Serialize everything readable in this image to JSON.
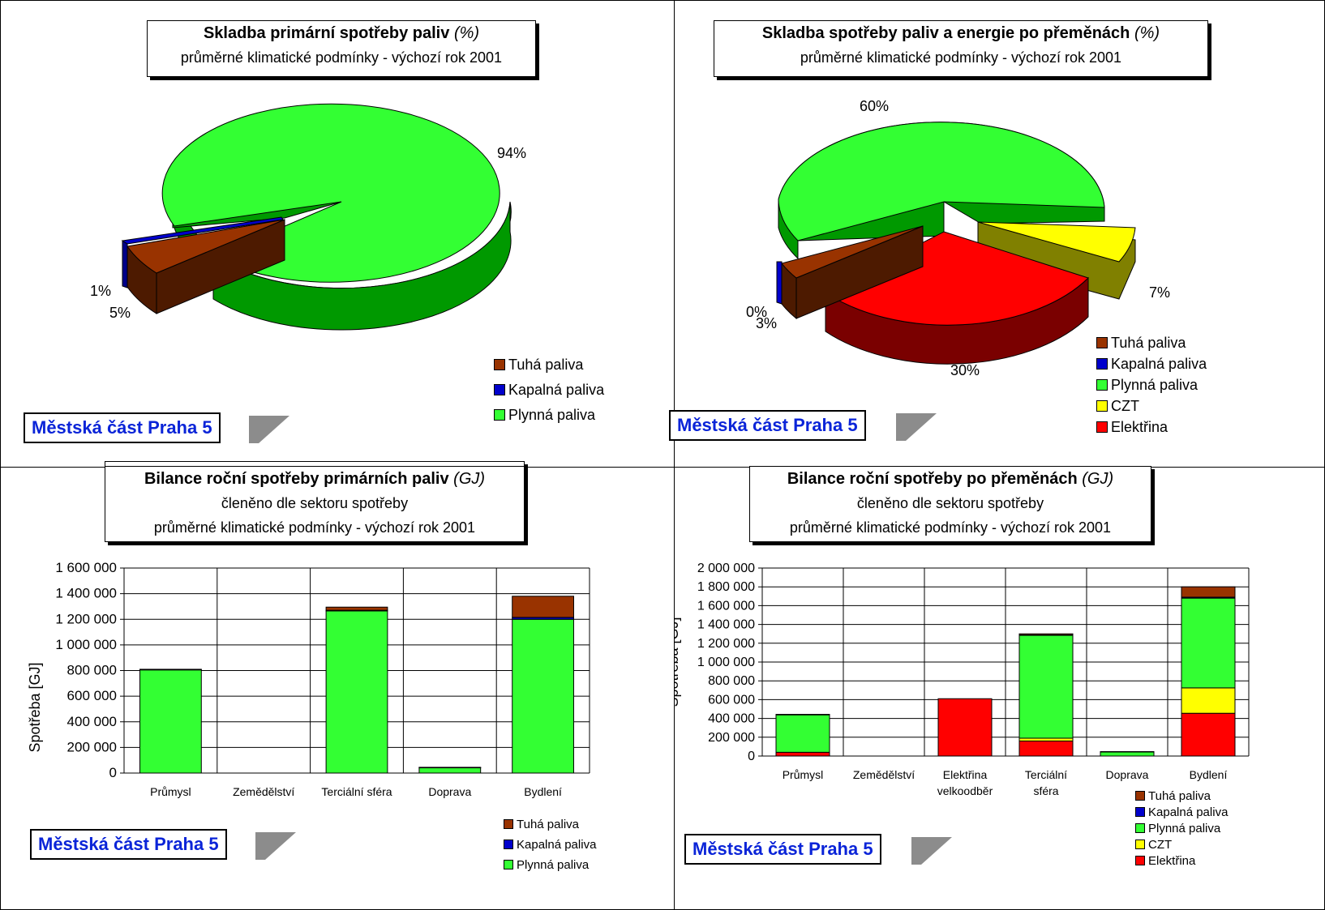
{
  "colors": {
    "tuha": "#993300",
    "kapalna": "#0000cc",
    "plynna": "#33ff33",
    "czt": "#ffff00",
    "elektrina": "#ff0000",
    "place_text": "#0a24d8"
  },
  "panels": {
    "pie1": {
      "title_bold": "Skladba primární spotřeby paliv",
      "title_italic": "(%)",
      "subtitle": "průměrné klimatické podmínky - výchozí rok 2001",
      "place": "Městská část Praha 5"
    },
    "pie2": {
      "title_bold": "Skladba spotřeby paliv a energie po přeměnách",
      "title_italic": "(%)",
      "subtitle": "průměrné klimatické podmínky - výchozí rok 2001",
      "place": "Městská část Praha 5"
    },
    "bar1": {
      "title_bold": "Bilance roční spotřeby primárních paliv",
      "title_italic": "(GJ)",
      "subtitle1": "členěno dle sektoru spotřeby",
      "subtitle2": "průměrné klimatické podmínky - výchozí rok 2001",
      "place": "Městská část Praha 5"
    },
    "bar2": {
      "title_bold": "Bilance roční spotřeby po přeměnách",
      "title_italic": "(GJ)",
      "subtitle1": "členěno dle sektoru spotřeby",
      "subtitle2": "průměrné klimatické podmínky - výchozí rok 2001",
      "place": "Městská část Praha 5"
    }
  },
  "chart_data": [
    {
      "type": "pie",
      "title": "Skladba primární spotřeby paliv (%)",
      "subtitle": "průměrné klimatické podmínky - výchozí rok 2001",
      "legend_position": "bottom-right",
      "slices": [
        {
          "label": "Tuhá paliva",
          "value": 5,
          "value_label": "5%"
        },
        {
          "label": "Kapalná paliva",
          "value": 1,
          "value_label": "1%"
        },
        {
          "label": "Plynná paliva",
          "value": 94,
          "value_label": "94%"
        }
      ]
    },
    {
      "type": "pie",
      "title": "Skladba spotřeby paliv a energie po přeměnách (%)",
      "subtitle": "průměrné klimatické podmínky - výchozí rok 2001",
      "legend_position": "bottom-right",
      "slices": [
        {
          "label": "Tuhá paliva",
          "value": 3,
          "value_label": "3%"
        },
        {
          "label": "Kapalná paliva",
          "value": 0,
          "value_label": "0%"
        },
        {
          "label": "Plynná paliva",
          "value": 60,
          "value_label": "60%"
        },
        {
          "label": "CZT",
          "value": 7,
          "value_label": "7%"
        },
        {
          "label": "Elektřina",
          "value": 30,
          "value_label": "30%"
        }
      ]
    },
    {
      "type": "bar",
      "stacked": true,
      "title": "Bilance roční spotřeby primárních paliv (GJ)",
      "subtitle": [
        "členěno dle sektoru spotřeby",
        "průměrné klimatické podmínky - výchozí rok 2001"
      ],
      "ylabel": "Spotřeba [GJ]",
      "ylim": [
        0,
        1600000
      ],
      "yticks": [
        0,
        200000,
        400000,
        600000,
        800000,
        1000000,
        1200000,
        1400000,
        1600000
      ],
      "ytick_labels": [
        "0",
        "200 000",
        "400 000",
        "600 000",
        "800 000",
        "1 000 000",
        "1 200 000",
        "1 400 000",
        "1 600 000"
      ],
      "grid": true,
      "legend_position": "bottom-right",
      "categories": [
        "Průmysl",
        "Zemědělství",
        "Terciální sféra",
        "Doprava",
        "Bydlení"
      ],
      "series": [
        {
          "name": "Plynná paliva",
          "values": [
            805000,
            0,
            1265000,
            42000,
            1200000
          ]
        },
        {
          "name": "Kapalná paliva",
          "values": [
            3000,
            0,
            5000,
            2000,
            15000
          ]
        },
        {
          "name": "Tuhá paliva",
          "values": [
            2000,
            0,
            25000,
            1000,
            165000
          ]
        }
      ]
    },
    {
      "type": "bar",
      "stacked": true,
      "title": "Bilance roční spotřeby po přeměnách (GJ)",
      "subtitle": [
        "členěno dle sektoru spotřeby",
        "průměrné klimatické podmínky - výchozí rok 2001"
      ],
      "ylabel": "Spotřeba [GJ]",
      "ylim": [
        0,
        2000000
      ],
      "yticks": [
        0,
        200000,
        400000,
        600000,
        800000,
        1000000,
        1200000,
        1400000,
        1600000,
        1800000,
        2000000
      ],
      "ytick_labels": [
        "0",
        "200 000",
        "400 000",
        "600 000",
        "800 000",
        "1 000 000",
        "1 200 000",
        "1 400 000",
        "1 600 000",
        "1 800 000",
        "2 000 000"
      ],
      "grid": true,
      "legend_position": "bottom-right",
      "categories": [
        [
          "Průmysl"
        ],
        [
          "Zemědělství"
        ],
        [
          "Elektřina",
          "velkoodběr"
        ],
        [
          "Terciální",
          "sféra"
        ],
        [
          "Doprava"
        ],
        [
          "Bydlení"
        ]
      ],
      "series": [
        {
          "name": "Elektřina",
          "values": [
            40000,
            0,
            610000,
            160000,
            0,
            455000
          ]
        },
        {
          "name": "CZT",
          "values": [
            0,
            0,
            0,
            30000,
            0,
            270000
          ]
        },
        {
          "name": "Plynná paliva",
          "values": [
            400000,
            0,
            0,
            1095000,
            45000,
            955000
          ]
        },
        {
          "name": "Kapalná paliva",
          "values": [
            2000,
            0,
            0,
            3000,
            2000,
            10000
          ]
        },
        {
          "name": "Tuhá paliva",
          "values": [
            1000,
            0,
            0,
            12000,
            0,
            110000
          ]
        }
      ]
    }
  ]
}
